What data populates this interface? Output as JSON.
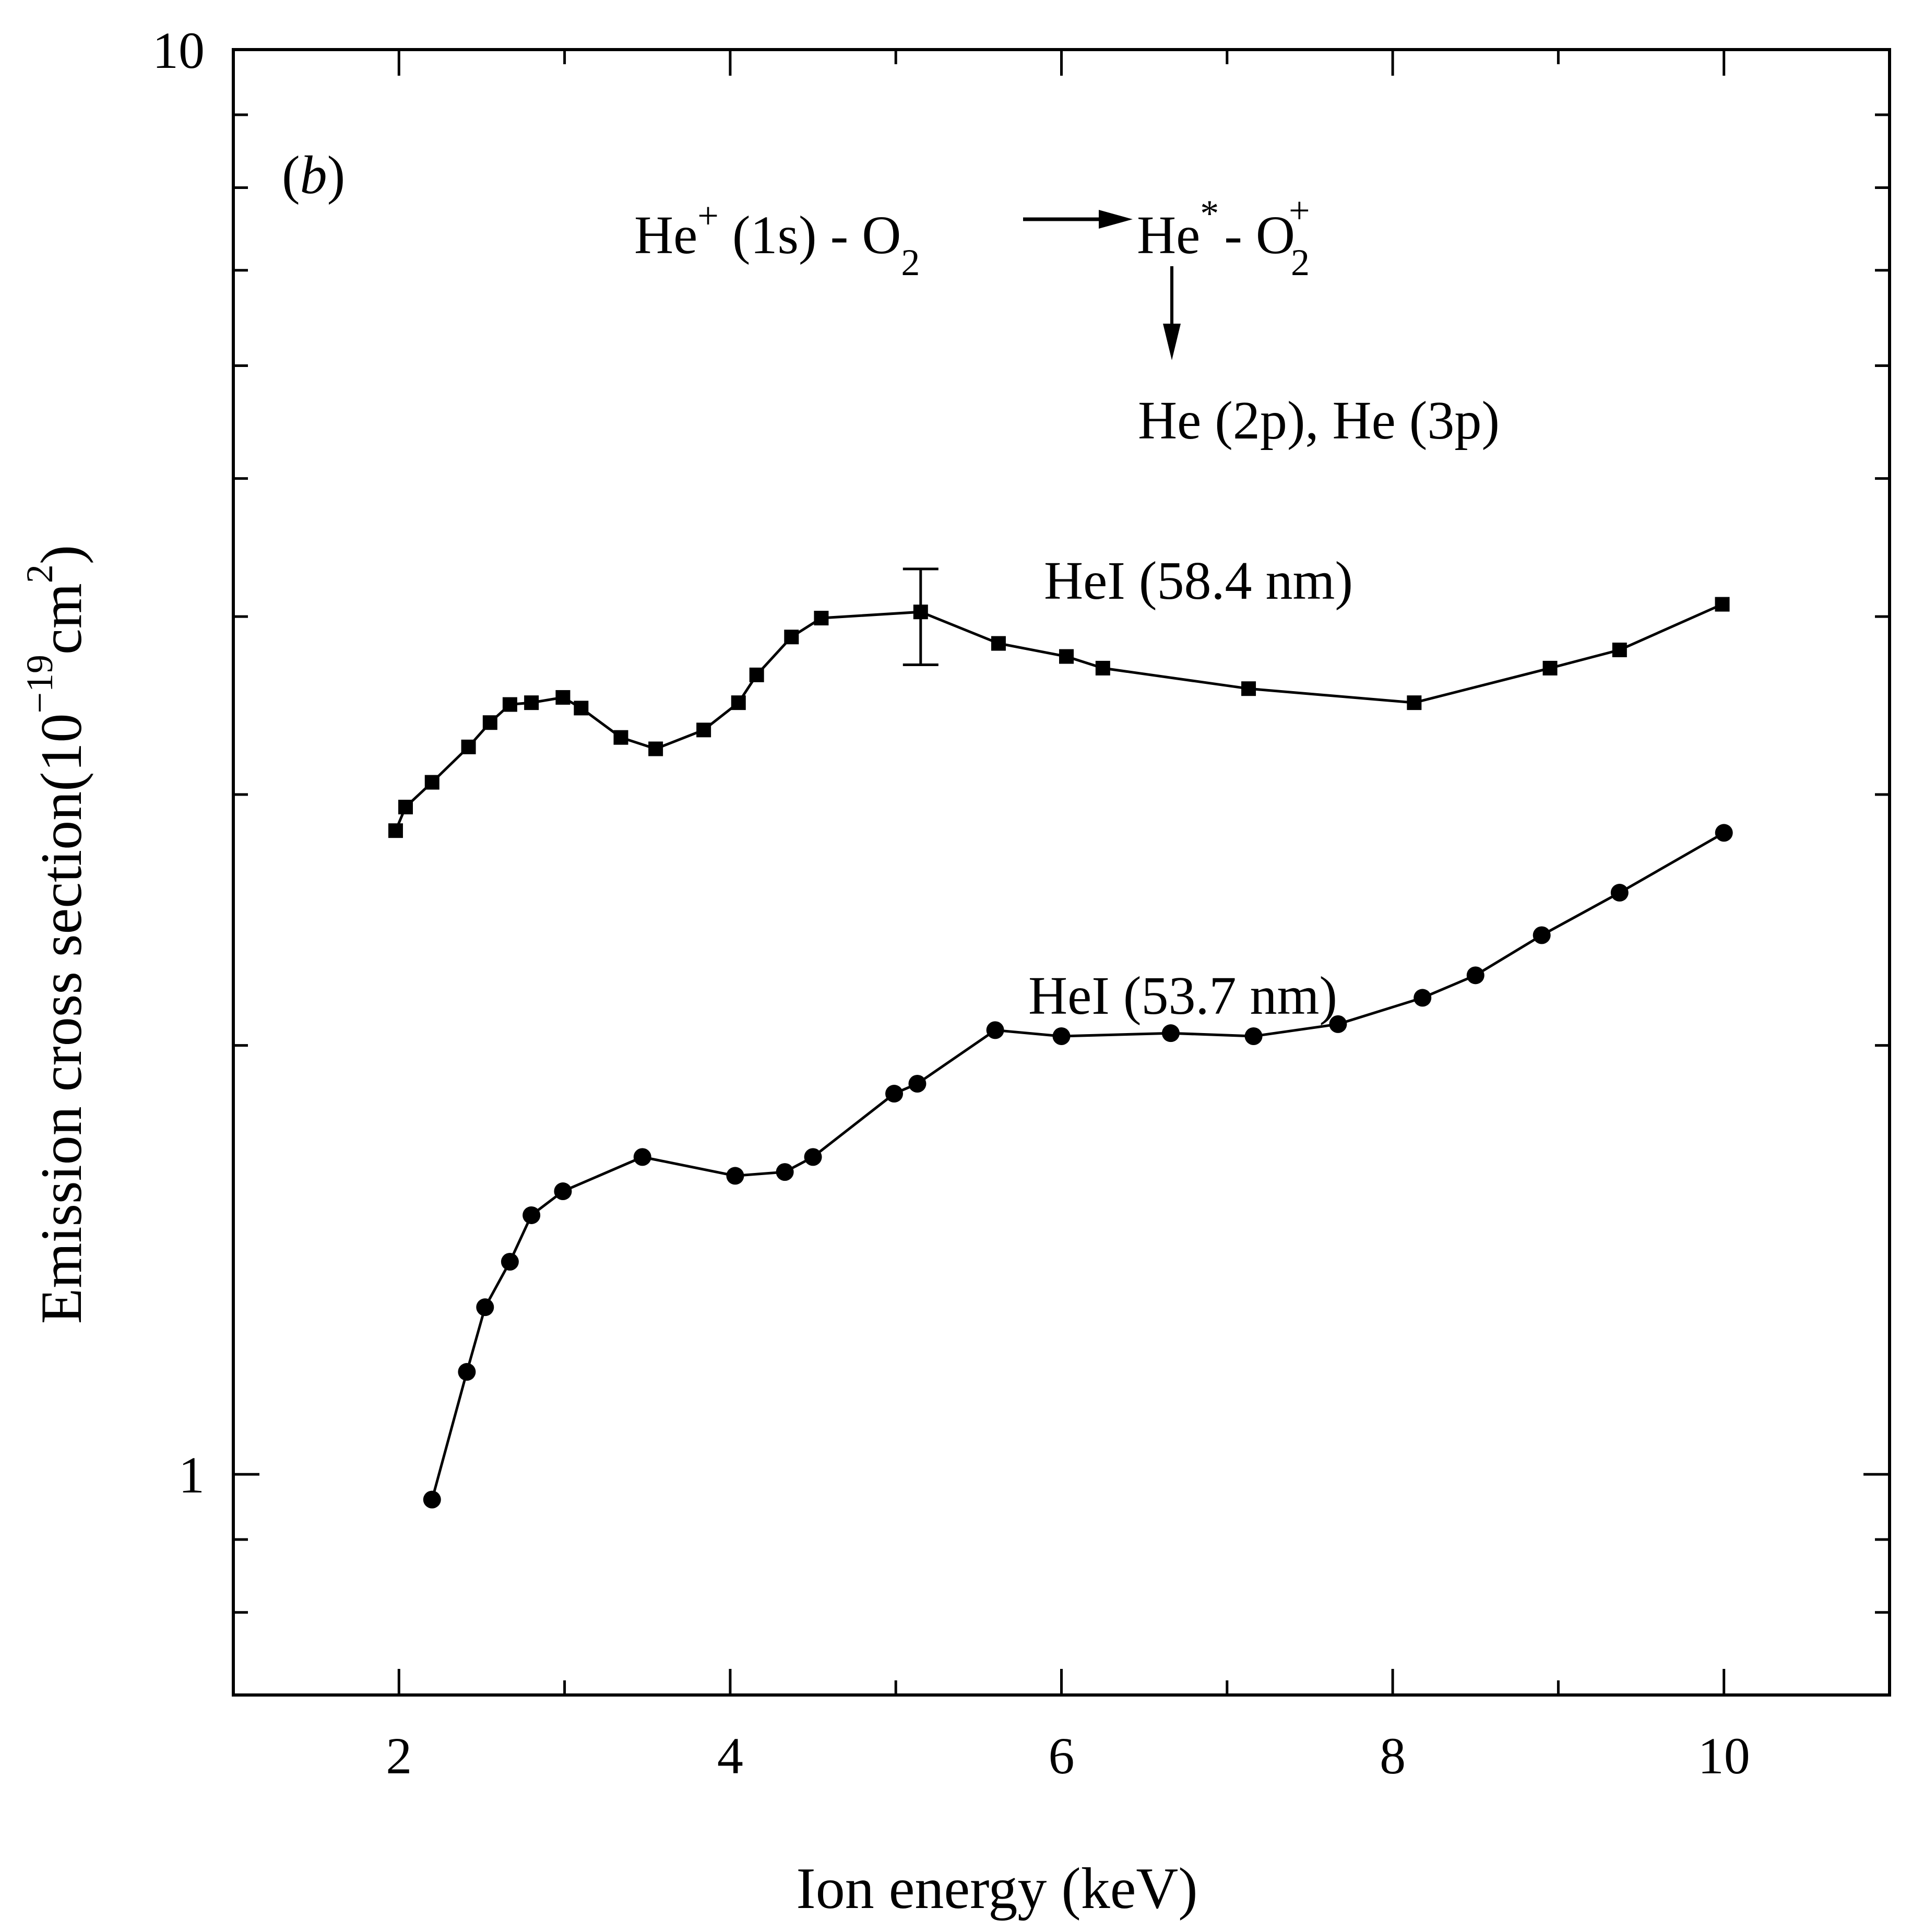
{
  "chart_data": {
    "type": "line",
    "panel_label": "b",
    "xlabel": "Ion energy (keV)",
    "ylabel": {
      "main": "Emission cross section(10",
      "exponent": "−19",
      "unit": "cm",
      "unit_exponent": "2",
      "close": ")"
    },
    "xlim": [
      1.0,
      11.0
    ],
    "ylim": [
      0.7,
      10
    ],
    "yscale": "log",
    "x_ticks": [
      2,
      4,
      6,
      8,
      10
    ],
    "x_tick_labels": [
      "2",
      "4",
      "6",
      "8",
      "10"
    ],
    "y_tick_labels": [
      {
        "value": 1,
        "label": "1"
      },
      {
        "value": 10,
        "label": "10"
      }
    ],
    "reaction": {
      "part1": "He",
      "part1_sup": "+",
      "part2": " (1s) - O",
      "part2_sub": "2",
      "product1": "He",
      "product1_sup": "*",
      "product2": "- O",
      "product2_sub": "2",
      "product2_sup": "+",
      "decay": "He (2p), He (3p)"
    },
    "series": [
      {
        "name": "HeI (58.4 nm)",
        "marker": "square",
        "x": [
          1.98,
          2.04,
          2.2,
          2.42,
          2.55,
          2.67,
          2.8,
          2.99,
          3.1,
          3.34,
          3.55,
          3.84,
          4.05,
          4.16,
          4.37,
          4.55,
          5.15,
          5.62,
          6.03,
          6.25,
          7.13,
          8.13,
          8.95,
          9.37,
          9.99
        ],
        "y": [
          2.83,
          2.94,
          3.06,
          3.24,
          3.37,
          3.47,
          3.48,
          3.51,
          3.45,
          3.29,
          3.23,
          3.33,
          3.48,
          3.64,
          3.87,
          3.99,
          4.03,
          3.83,
          3.75,
          3.68,
          3.56,
          3.48,
          3.68,
          3.79,
          4.08
        ],
        "error_bar": {
          "x": 5.15,
          "y": 4.03,
          "lower": 3.7,
          "upper": 4.32
        }
      },
      {
        "name": "HeI (53.7 nm)",
        "marker": "circle",
        "x": [
          2.2,
          2.41,
          2.52,
          2.67,
          2.8,
          2.99,
          3.47,
          4.03,
          4.33,
          4.5,
          4.99,
          5.13,
          5.6,
          6.0,
          6.66,
          7.16,
          7.67,
          8.18,
          8.5,
          8.9,
          9.37,
          10.0
        ],
        "y": [
          0.96,
          1.18,
          1.31,
          1.41,
          1.52,
          1.58,
          1.67,
          1.62,
          1.63,
          1.67,
          1.85,
          1.88,
          2.05,
          2.03,
          2.04,
          2.03,
          2.07,
          2.16,
          2.24,
          2.39,
          2.56,
          2.82
        ]
      }
    ]
  }
}
